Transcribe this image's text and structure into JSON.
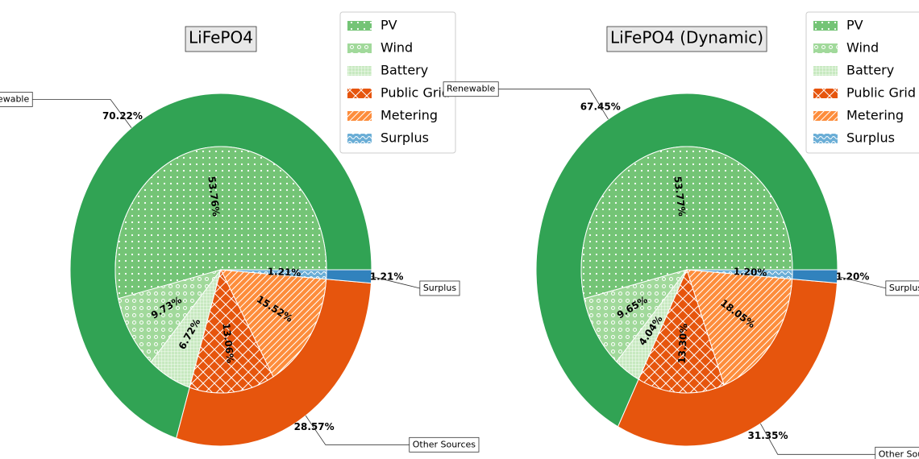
{
  "chart_data": [
    {
      "type": "pie",
      "title": "LiFePO4",
      "legend": "upper right",
      "outer": {
        "categories": [
          "Renewable",
          "Other Sources",
          "Surplus"
        ],
        "values": [
          70.22,
          28.57,
          1.21
        ],
        "value_labels": [
          "70.22%",
          "28.57%",
          "1.21%"
        ],
        "colors": [
          "#31a354",
          "#e6550d",
          "#3182bd"
        ]
      },
      "inner": {
        "categories": [
          "PV",
          "Wind",
          "Battery",
          "Public Grid",
          "Metering",
          "Surplus"
        ],
        "values": [
          53.76,
          9.73,
          6.72,
          13.06,
          15.52,
          1.21
        ],
        "value_labels": [
          "53.76%",
          "9.73%",
          "6.72%",
          "13.06%",
          "15.52%",
          "1.21%"
        ],
        "colors": [
          "#74c476",
          "#a1d99b",
          "#c7e9c0",
          "#e6550d",
          "#fd8d3c",
          "#6baed6"
        ]
      }
    },
    {
      "type": "pie",
      "title": "LiFePO4 (Dynamic)",
      "legend": "upper right",
      "outer": {
        "categories": [
          "Renewable",
          "Other Sources",
          "Surplus"
        ],
        "values": [
          67.45,
          31.35,
          1.2
        ],
        "value_labels": [
          "67.45%",
          "31.35%",
          "1.20%"
        ],
        "colors": [
          "#31a354",
          "#e6550d",
          "#3182bd"
        ]
      },
      "inner": {
        "categories": [
          "PV",
          "Wind",
          "Battery",
          "Public Grid",
          "Metering",
          "Surplus"
        ],
        "values": [
          53.77,
          9.65,
          4.04,
          13.3,
          18.05,
          1.2
        ],
        "value_labels": [
          "53.77%",
          "9.65%",
          "4.04%",
          "13.30%",
          "18.05%",
          "1.20%"
        ],
        "colors": [
          "#74c476",
          "#a1d99b",
          "#c7e9c0",
          "#e6550d",
          "#fd8d3c",
          "#6baed6"
        ]
      }
    }
  ]
}
